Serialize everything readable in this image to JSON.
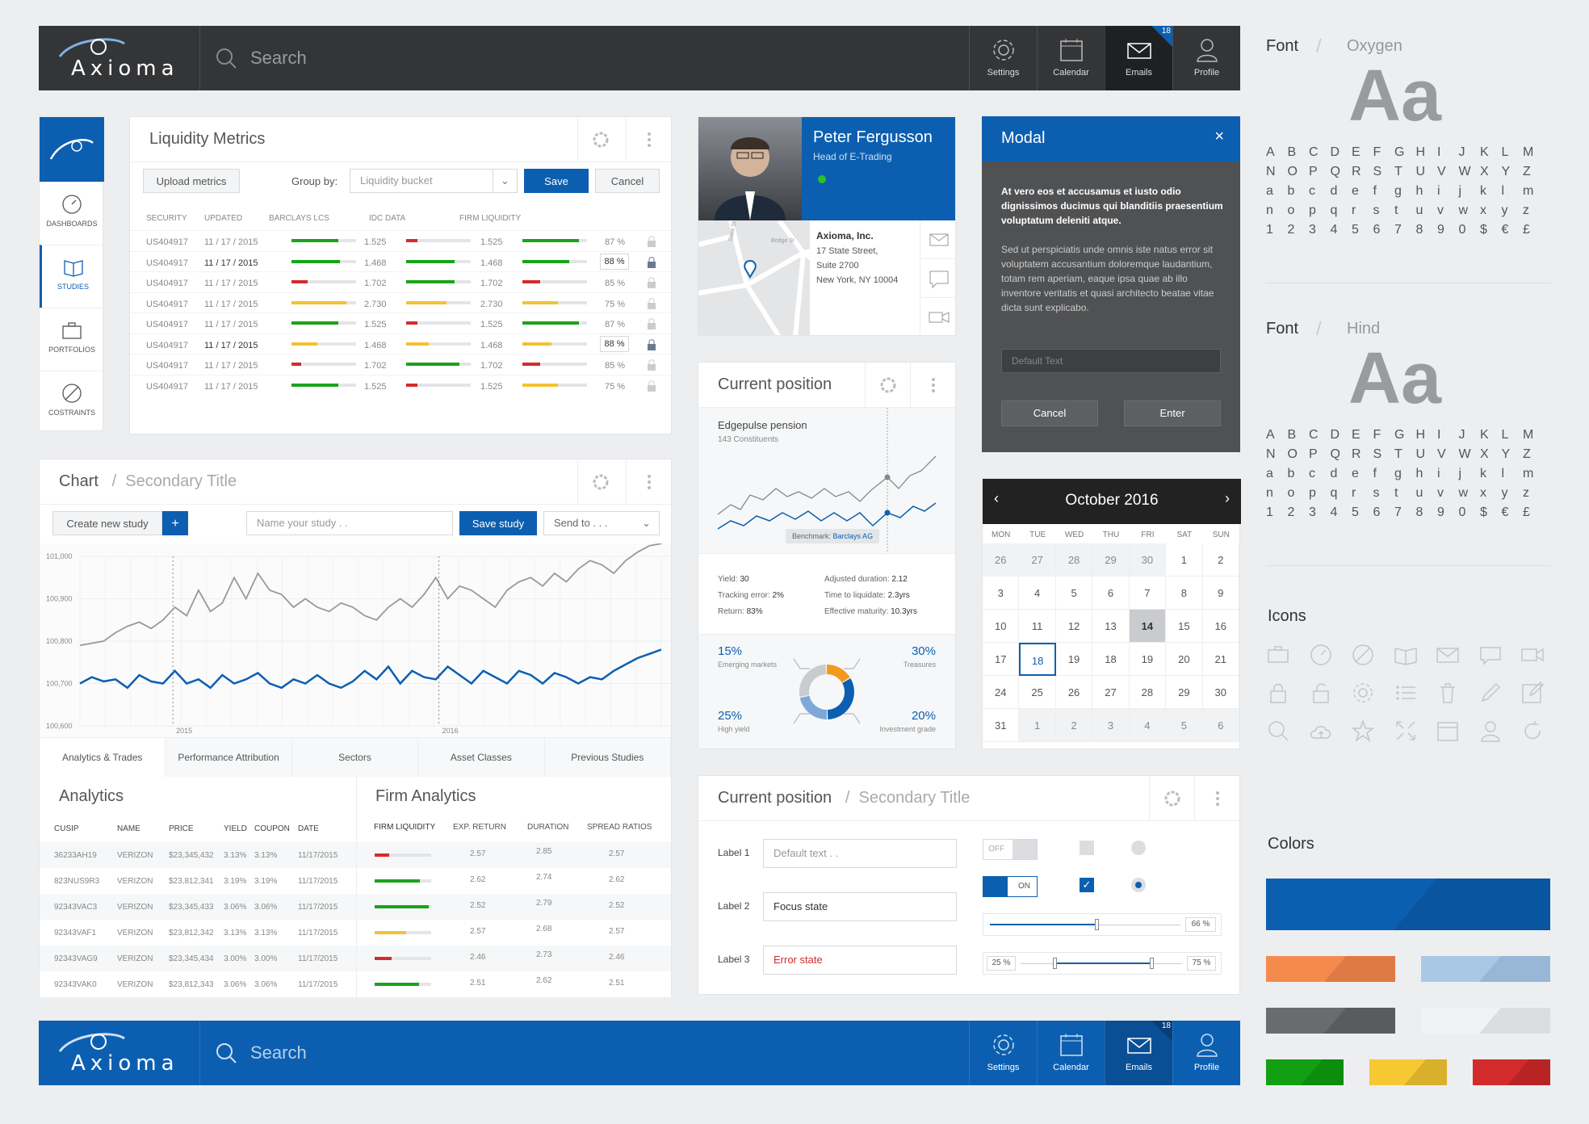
{
  "topbar": {
    "brand": "Axioma",
    "search_placeholder": "Search",
    "settings": "Settings",
    "calendar": "Calendar",
    "emails": "Emails",
    "profile": "Profile",
    "email_badge": "18"
  },
  "sidenav": {
    "dashboards": "DASHBOARDS",
    "studies": "STUDIES",
    "portfolios": "PORTFOLIOS",
    "constraints": "COSTRAINTS"
  },
  "liquidity": {
    "title": "Liquidity Metrics",
    "upload": "Upload metrics",
    "group_by": "Group by:",
    "group_value": "Liquidity bucket",
    "save": "Save",
    "cancel": "Cancel",
    "headers": [
      "SECURITY",
      "UPDATED",
      "BARCLAYS LCS",
      "IDC DATA",
      "FIRM LIQUIDITY"
    ],
    "rows": [
      {
        "security": "US404917",
        "updated": "11 / 17 / 2015",
        "barclays": "1.525",
        "barclays_fill": 0.72,
        "barclays_color": "g",
        "idc": "1.525",
        "idc_fill": 0.18,
        "idc_color": "r",
        "firm": "87 %",
        "firm_fill": 0.88,
        "firm_color": "g",
        "edit": false
      },
      {
        "security": "US404917",
        "updated": "11 / 17 / 2015",
        "barclays": "1.468",
        "barclays_fill": 0.75,
        "barclays_color": "g",
        "idc": "1.468",
        "idc_fill": 0.75,
        "idc_color": "g",
        "firm": "88 %",
        "firm_fill": 0.72,
        "firm_color": "g",
        "edit": true
      },
      {
        "security": "US404917",
        "updated": "11 / 17 / 2015",
        "barclays": "1.702",
        "barclays_fill": 0.25,
        "barclays_color": "r",
        "idc": "1.702",
        "idc_fill": 0.75,
        "idc_color": "g",
        "firm": "85 %",
        "firm_fill": 0.28,
        "firm_color": "r",
        "edit": false
      },
      {
        "security": "US404917",
        "updated": "11 / 17 / 2015",
        "barclays": "2.730",
        "barclays_fill": 0.85,
        "barclays_color": "y",
        "idc": "2.730",
        "idc_fill": 0.62,
        "idc_color": "y",
        "firm": "75 %",
        "firm_fill": 0.55,
        "firm_color": "y",
        "edit": false
      },
      {
        "security": "US404917",
        "updated": "11 / 17 / 2015",
        "barclays": "1.525",
        "barclays_fill": 0.72,
        "barclays_color": "g",
        "idc": "1.525",
        "idc_fill": 0.18,
        "idc_color": "r",
        "firm": "87 %",
        "firm_fill": 0.88,
        "firm_color": "g",
        "edit": false
      },
      {
        "security": "US404917",
        "updated": "11 / 17 / 2015",
        "barclays": "1.468",
        "barclays_fill": 0.4,
        "barclays_color": "y",
        "idc": "1.468",
        "idc_fill": 0.35,
        "idc_color": "y",
        "firm": "88 %",
        "firm_fill": 0.45,
        "firm_color": "y",
        "edit": true
      },
      {
        "security": "US404917",
        "updated": "11 / 17 / 2015",
        "barclays": "1.702",
        "barclays_fill": 0.15,
        "barclays_color": "r",
        "idc": "1.702",
        "idc_fill": 0.82,
        "idc_color": "g",
        "firm": "85 %",
        "firm_fill": 0.28,
        "firm_color": "r",
        "edit": false
      },
      {
        "security": "US404917",
        "updated": "11 / 17 / 2015",
        "barclays": "1.525",
        "barclays_fill": 0.72,
        "barclays_color": "g",
        "idc": "1.525",
        "idc_fill": 0.18,
        "idc_color": "r",
        "firm": "75 %",
        "firm_fill": 0.55,
        "firm_color": "y",
        "edit": false
      }
    ]
  },
  "chart_panel": {
    "title": "Chart",
    "secondary": "Secondary Title",
    "create": "Create new study",
    "plus": "+",
    "name_placeholder": "Name your study . .",
    "save": "Save study",
    "send": "Send to . . ."
  },
  "chart_data": {
    "type": "line",
    "x_labels": [
      "2015",
      "2016"
    ],
    "ylim": [
      100600,
      101000
    ],
    "yticks": [
      "101,000",
      "100,900",
      "100,800",
      "100,700",
      "100,600"
    ],
    "series": [
      {
        "values": [
          100790,
          100795,
          100800,
          100820,
          100835,
          100845,
          100830,
          100850,
          100880,
          100860,
          100920,
          100870,
          100890,
          100950,
          100900,
          100960,
          100920,
          100910,
          100880,
          100900,
          100880,
          100870,
          100890,
          100880,
          100860,
          100850,
          100880,
          100900,
          100880,
          100910,
          100950,
          100900,
          100930,
          100920,
          100900,
          100880,
          100920,
          100940,
          100950,
          100930,
          100960,
          100940,
          100970,
          100990,
          100980,
          100960,
          100990,
          101010,
          101025,
          101030
        ]
      },
      {
        "values": [
          100700,
          100715,
          100705,
          100710,
          100690,
          100720,
          100705,
          100700,
          100730,
          100700,
          100710,
          100690,
          100720,
          100700,
          100710,
          100725,
          100700,
          100690,
          100710,
          100700,
          100720,
          100700,
          100690,
          100705,
          100730,
          100710,
          100740,
          100700,
          100730,
          100715,
          100710,
          100740,
          100720,
          100700,
          100730,
          100715,
          100700,
          100730,
          100720,
          100700,
          100725,
          100715,
          100700,
          100715,
          100710,
          100730,
          100745,
          100760,
          100770,
          100780
        ]
      }
    ]
  },
  "tabs": [
    "Analytics & Trades",
    "Performance Attribution",
    "Sectors",
    "Asset Classes",
    "Previous Studies"
  ],
  "analytics": {
    "title": "Analytics",
    "headers": [
      "CUSIP",
      "NAME",
      "PRICE",
      "YIELD",
      "COUPON",
      "DATE"
    ],
    "rows": [
      [
        "36233AH19",
        "VERIZON",
        "$23,345,432",
        "3.13%",
        "3.13%",
        "11/17/2015"
      ],
      [
        "823NUS9R3",
        "VERIZON",
        "$23,812,341",
        "3.19%",
        "3.19%",
        "11/17/2015"
      ],
      [
        "92343VAC3",
        "VERIZON",
        "$23,345,433",
        "3.06%",
        "3.06%",
        "11/17/2015"
      ],
      [
        "92343VAF1",
        "VERIZON",
        "$23,812,342",
        "3.13%",
        "3.13%",
        "11/17/2015"
      ],
      [
        "92343VAG9",
        "VERIZON",
        "$23,345,434",
        "3.00%",
        "3.00%",
        "11/17/2015"
      ],
      [
        "92343VAK0",
        "VERIZON",
        "$23,812,343",
        "3.06%",
        "3.06%",
        "11/17/2015"
      ]
    ]
  },
  "firm_analytics": {
    "title": "Firm Analytics",
    "headers": [
      "FIRM LIQUIDITY",
      "EXP. RETURN",
      "DURATION",
      "SPREAD RATIOS"
    ],
    "rows": [
      {
        "fill": 0.25,
        "color": "r",
        "ret": "2.57",
        "dur": "2.85",
        "spread": "2.57"
      },
      {
        "fill": 0.8,
        "color": "g",
        "ret": "2.62",
        "dur": "2.74",
        "spread": "2.62"
      },
      {
        "fill": 0.95,
        "color": "g",
        "ret": "2.52",
        "dur": "2.79",
        "spread": "2.52"
      },
      {
        "fill": 0.55,
        "color": "y",
        "ret": "2.57",
        "dur": "2.68",
        "spread": "2.57"
      },
      {
        "fill": 0.3,
        "color": "r",
        "ret": "2.46",
        "dur": "2.73",
        "spread": "2.46"
      },
      {
        "fill": 0.78,
        "color": "g",
        "ret": "2.51",
        "dur": "2.62",
        "spread": "2.51"
      }
    ]
  },
  "profile": {
    "name": "Peter Fergusson",
    "role": "Head of E-Trading",
    "company": "Axioma, Inc.",
    "addr1": "17 State Street,",
    "addr2": "Suite 2700",
    "addr3": "New York, NY 10004",
    "map_label1": "State St",
    "map_label2": "Bridge St"
  },
  "position": {
    "title": "Current position",
    "fund": "Edgepulse pension",
    "constituents": "143 Constituents",
    "benchmark_label": "Benchmark:",
    "benchmark": "Barclays AG",
    "yield_l": "Yield:",
    "yield": "30",
    "te_l": "Tracking error:",
    "te": "2%",
    "ret_l": "Return:",
    "ret": "83%",
    "ad_l": "Adjusted duration:",
    "ad": "2.12",
    "ttl_l": "Time to liquidate:",
    "ttl": "2.3yrs",
    "em_l": "Effective maturity:",
    "em": "10.3yrs",
    "pie": [
      {
        "label": "Emerging markets",
        "pct": "15%",
        "value": 15,
        "color": "#f29a1d"
      },
      {
        "label": "Treasures",
        "pct": "30%",
        "value": 30,
        "color": "#0c5fb0"
      },
      {
        "label": "Investment grade",
        "pct": "20%",
        "value": 20,
        "color": "#7ea8d8"
      },
      {
        "label": "High yield",
        "pct": "25%",
        "value": 25,
        "color": "#c9cbce"
      }
    ]
  },
  "modal": {
    "title": "Modal",
    "bold": "At vero eos et accusamus et iusto odio dignissimos ducimus qui blanditiis praesentium voluptatum deleniti atque.",
    "body": "Sed ut perspiciatis unde omnis iste natus error sit voluptatem accusantium doloremque laudantium, totam rem aperiam, eaque ipsa quae ab illo inventore veritatis et quasi architecto beatae vitae dicta sunt explicabo.",
    "placeholder": "Default Text",
    "cancel": "Cancel",
    "enter": "Enter"
  },
  "calendar": {
    "month": "October 2016",
    "days": [
      "MON",
      "TUE",
      "WED",
      "THU",
      "FRI",
      "SAT",
      "SUN"
    ],
    "cells": [
      [
        "26",
        1
      ],
      [
        "27",
        1
      ],
      [
        "28",
        1
      ],
      [
        "29",
        1
      ],
      [
        "30",
        1
      ],
      [
        "1",
        0
      ],
      [
        "2",
        0
      ],
      [
        "3",
        0
      ],
      [
        "4",
        0
      ],
      [
        "5",
        0
      ],
      [
        "6",
        0
      ],
      [
        "7",
        0
      ],
      [
        "8",
        0
      ],
      [
        "9",
        0
      ],
      [
        "10",
        0
      ],
      [
        "11",
        0
      ],
      [
        "12",
        0
      ],
      [
        "13",
        0
      ],
      [
        "14",
        2
      ],
      [
        "15",
        0
      ],
      [
        "16",
        0
      ],
      [
        "17",
        0
      ],
      [
        "18",
        3
      ],
      [
        "19",
        0
      ],
      [
        "18",
        0
      ],
      [
        "19",
        0
      ],
      [
        "20",
        0
      ],
      [
        "21",
        0
      ],
      [
        "24",
        0
      ],
      [
        "25",
        0
      ],
      [
        "26",
        0
      ],
      [
        "27",
        0
      ],
      [
        "28",
        0
      ],
      [
        "29",
        0
      ],
      [
        "30",
        0
      ],
      [
        "31",
        0
      ],
      [
        "1",
        1
      ],
      [
        "2",
        1
      ],
      [
        "3",
        1
      ],
      [
        "4",
        1
      ],
      [
        "5",
        1
      ],
      [
        "6",
        1
      ]
    ]
  },
  "form": {
    "title": "Current position",
    "secondary": "Secondary Title",
    "label1": "Label 1",
    "label2": "Label 2",
    "label3": "Label 3",
    "ph1": "Default text . .",
    "focus": "Focus state",
    "error": "Error state",
    "off": "OFF",
    "on": "ON",
    "slider_val": "66 %",
    "range_lo": "25 %",
    "range_hi": "75 %",
    "slider_level": 0.66,
    "range_low": 0.25,
    "range_high": 0.75
  },
  "style_guide": {
    "font_label": "Font",
    "font1": "Oxygen",
    "font2": "Hind",
    "aa": "Aa",
    "icons_title": "Icons",
    "colors_title": "Colors",
    "glyph_rows": [
      [
        "A",
        "B",
        "C",
        "D",
        "E",
        "F",
        "G",
        "H",
        "I",
        "J",
        "K",
        "L",
        "M"
      ],
      [
        "N",
        "O",
        "P",
        "Q",
        "R",
        "S",
        "T",
        "U",
        "V",
        "W",
        "X",
        "Y",
        "Z"
      ],
      [
        "a",
        "b",
        "c",
        "d",
        "e",
        "f",
        "g",
        "h",
        "i",
        "j",
        "k",
        "l",
        "m"
      ],
      [
        "n",
        "o",
        "p",
        "q",
        "r",
        "s",
        "t",
        "u",
        "v",
        "w",
        "x",
        "y",
        "z"
      ],
      [
        "1",
        "2",
        "3",
        "4",
        "5",
        "6",
        "7",
        "8",
        "9",
        "0",
        "$",
        "€",
        "£"
      ]
    ],
    "icon_names": [
      "briefcase-icon",
      "dashboard-icon",
      "constraint-icon",
      "book-icon",
      "mail-icon",
      "chat-icon",
      "video-icon",
      "lock-icon",
      "unlock-icon",
      "gear-icon",
      "list-icon",
      "trash-icon",
      "pencil-icon",
      "edit-icon",
      "search-icon",
      "cloud-upload-icon",
      "star-icon",
      "expand-icon",
      "calendar-icon",
      "user-icon",
      "refresh-icon"
    ],
    "colors": {
      "primary": "#0c5fb0",
      "orange": "#f58a4f",
      "light_blue": "#a9c8e6",
      "dark_gray": "#6a6b6d",
      "light_gray": "#eeeff0",
      "green": "#12a012",
      "yellow": "#f6c932",
      "red": "#d32b2b"
    }
  }
}
